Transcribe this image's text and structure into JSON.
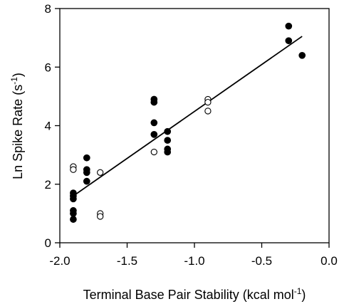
{
  "chart_data": {
    "type": "scatter",
    "xlabel": "Terminal Base Pair Stability (kcal mol",
    "xlabel_superscript": "-1",
    "xlabel_suffix": ")",
    "ylabel": "Ln Spike Rate (s",
    "ylabel_superscript": "-1",
    "ylabel_suffix": ")",
    "xlim": [
      -2.0,
      0.0
    ],
    "ylim": [
      0,
      8
    ],
    "x_ticks": [
      -2.0,
      -1.5,
      -1.0,
      -0.5,
      0.0
    ],
    "x_tick_labels": [
      "-2.0",
      "-1.5",
      "-1.0",
      "-0.5",
      "0.0"
    ],
    "y_ticks": [
      0,
      2,
      4,
      6,
      8
    ],
    "y_tick_labels": [
      "0",
      "2",
      "4",
      "6",
      "8"
    ],
    "grid": false,
    "series": [
      {
        "marker": "filled-circle",
        "color": "#000000",
        "points": [
          [
            -1.9,
            1.7
          ],
          [
            -1.9,
            1.6
          ],
          [
            -1.9,
            1.5
          ],
          [
            -1.9,
            1.1
          ],
          [
            -1.9,
            1.0
          ],
          [
            -1.9,
            0.8
          ],
          [
            -1.8,
            2.9
          ],
          [
            -1.8,
            2.5
          ],
          [
            -1.8,
            2.4
          ],
          [
            -1.8,
            2.1
          ],
          [
            -1.3,
            4.9
          ],
          [
            -1.3,
            4.8
          ],
          [
            -1.3,
            4.1
          ],
          [
            -1.3,
            3.7
          ],
          [
            -1.2,
            3.8
          ],
          [
            -1.2,
            3.5
          ],
          [
            -1.2,
            3.2
          ],
          [
            -1.2,
            3.1
          ],
          [
            -0.3,
            7.4
          ],
          [
            -0.3,
            6.9
          ],
          [
            -0.2,
            6.4
          ]
        ]
      },
      {
        "marker": "open-circle",
        "color": "#000000",
        "points": [
          [
            -1.9,
            2.6
          ],
          [
            -1.9,
            2.5
          ],
          [
            -1.7,
            2.4
          ],
          [
            -1.7,
            1.0
          ],
          [
            -1.7,
            0.9
          ],
          [
            -1.3,
            3.1
          ],
          [
            -0.9,
            4.9
          ],
          [
            -0.9,
            4.8
          ],
          [
            -0.9,
            4.5
          ]
        ]
      }
    ],
    "fit_line": {
      "type": "line",
      "x": [
        -1.9,
        -0.2
      ],
      "y": [
        1.6,
        7.05
      ]
    }
  }
}
